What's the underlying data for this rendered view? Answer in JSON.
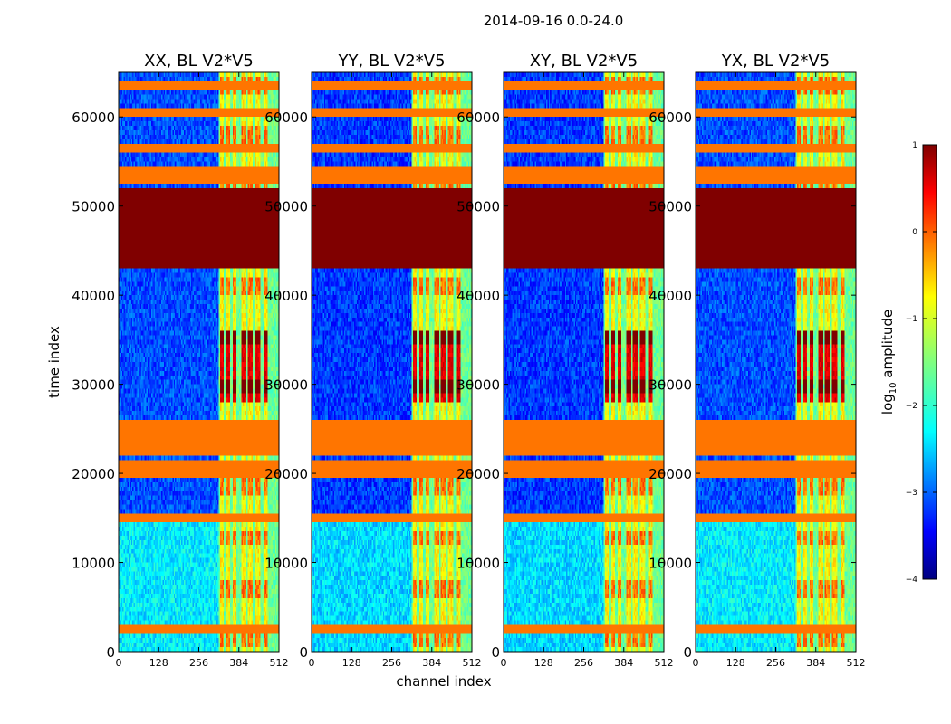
{
  "figure_title": "2014-09-16 0.0-24.0",
  "chart_data": {
    "type": "heatmap",
    "title": "2014-09-16 0.0-24.0",
    "xlabel": "channel index",
    "ylabel": "time index",
    "xlim": [
      0,
      512
    ],
    "ylim": [
      0,
      65000
    ],
    "x_ticks": [
      0,
      128,
      256,
      384,
      512
    ],
    "y_ticks": [
      0,
      10000,
      20000,
      30000,
      40000,
      50000,
      60000
    ],
    "colorbar": {
      "label_prefix": "log",
      "label_sub": "10",
      "label_suffix": " amplitude",
      "range": [
        -4,
        1
      ],
      "ticks": [
        1,
        0,
        -1,
        -2,
        -3,
        -4
      ],
      "tick_labels": [
        "1",
        "0",
        "−1",
        "−2",
        "−3",
        "−4"
      ],
      "colormap": "jet"
    },
    "panels": [
      {
        "title": "XX, BL V2*V5"
      },
      {
        "title": "YY, BL V2*V5"
      },
      {
        "title": "XY, BL V2*V5"
      },
      {
        "title": "YX, BL V2*V5"
      }
    ],
    "features": {
      "flagged_block_time": [
        43000,
        52000
      ],
      "flagged_value": 1,
      "rfi_channel_band": [
        320,
        512
      ],
      "rfi_channels": [
        330,
        350,
        370,
        400,
        420,
        445,
        470
      ],
      "rfi_bright_times": [
        32500,
        29500,
        34500
      ],
      "orange_lines_time": [
        2500,
        15000,
        20000,
        21000,
        22500,
        23000,
        24000,
        25000,
        25500,
        53000,
        54000,
        56500,
        60500,
        63500
      ],
      "background_low_time": [
        0,
        15000
      ],
      "background_low_value": -2.2,
      "background_high_value": -3.0
    }
  }
}
